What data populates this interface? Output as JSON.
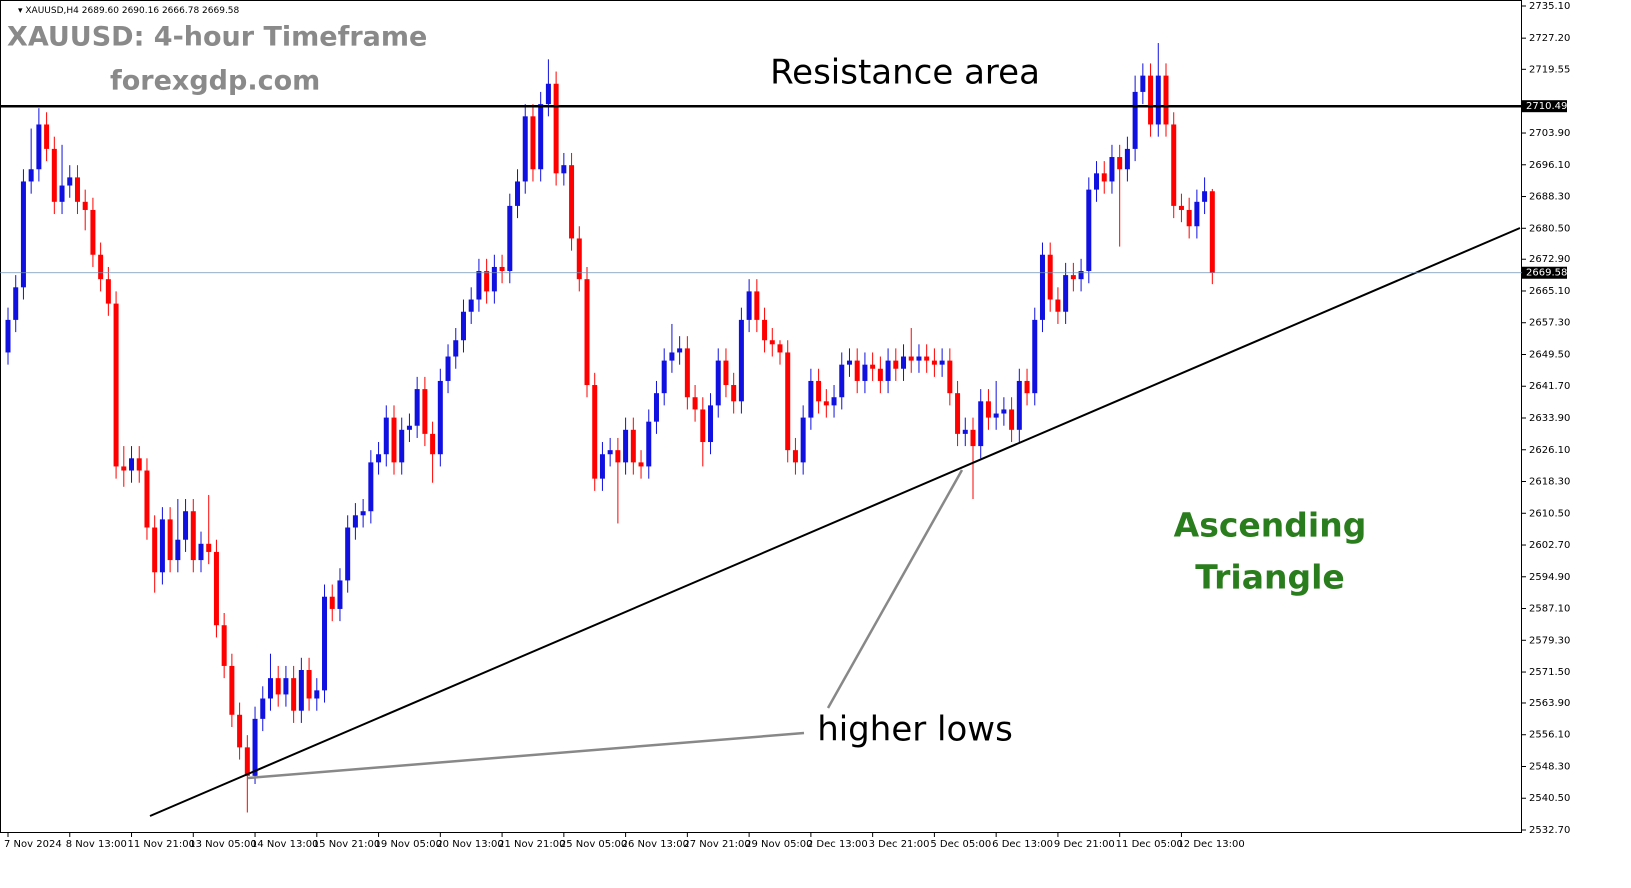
{
  "info_bar": {
    "symbol": "XAUUSD,H4",
    "values": [
      "2689.60",
      "2690.16",
      "2666.78",
      "2669.58"
    ]
  },
  "headline": "XAUUSD: 4-hour Timeframe",
  "website": "forexgdp.com",
  "annotations": {
    "resistance": "Resistance area",
    "pattern": [
      "Ascending",
      "Triangle"
    ],
    "lows": "higher lows"
  },
  "chart_data": {
    "type": "candlestick",
    "categories": [
      "7 Nov 2024",
      null,
      null,
      null,
      null,
      null,
      null,
      null,
      "8 Nov 13:00",
      null,
      null,
      null,
      null,
      null,
      null,
      null,
      "11 Nov 21:00",
      null,
      null,
      null,
      null,
      null,
      null,
      null,
      "13 Nov 05:00",
      null,
      null,
      null,
      null,
      null,
      null,
      null,
      "14 Nov 13:00",
      null,
      null,
      null,
      null,
      null,
      null,
      null,
      "15 Nov 21:00",
      null,
      null,
      null,
      null,
      null,
      null,
      null,
      "19 Nov 05:00",
      null,
      null,
      null,
      null,
      null,
      null,
      null,
      "20 Nov 13:00",
      null,
      null,
      null,
      null,
      null,
      null,
      null,
      "21 Nov 21:00",
      null,
      null,
      null,
      null,
      null,
      null,
      null,
      "25 Nov 05:00",
      null,
      null,
      null,
      null,
      null,
      null,
      null,
      "26 Nov 13:00",
      null,
      null,
      null,
      null,
      null,
      null,
      null,
      "27 Nov 21:00",
      null,
      null,
      null,
      null,
      null,
      null,
      null,
      "29 Nov 05:00",
      null,
      null,
      null,
      null,
      null,
      null,
      null,
      "2 Dec 13:00",
      null,
      null,
      null,
      null,
      null,
      null,
      null,
      "3 Dec 21:00",
      null,
      null,
      null,
      null,
      null,
      null,
      null,
      "5 Dec 05:00",
      null,
      null,
      null,
      null,
      null,
      null,
      null,
      "6 Dec 13:00",
      null,
      null,
      null,
      null,
      null,
      null,
      null,
      "9 Dec 21:00",
      null,
      null,
      null,
      null,
      null,
      null,
      null,
      "11 Dec 05:00",
      null,
      null,
      null,
      null,
      null,
      null,
      null,
      "12 Dec 13:00",
      null,
      null,
      null,
      null
    ],
    "open": [
      2650,
      2658,
      2666,
      2692,
      2695,
      2706,
      2700,
      2687,
      2691,
      2693,
      2687,
      2685,
      2674,
      2668,
      2662,
      2622,
      2621,
      2624,
      2621,
      2607,
      2596,
      2609,
      2599,
      2604,
      2611,
      2599,
      2603,
      2601,
      2583,
      2573,
      2561,
      2553,
      2546,
      2560,
      2565,
      2570,
      2566,
      2570,
      2562,
      2572,
      2565,
      2567,
      2590,
      2587,
      2594,
      2607,
      2610,
      2611,
      2623,
      2625,
      2634,
      2623,
      2631,
      2632,
      2641,
      2630,
      2625,
      2643,
      2649,
      2653,
      2660,
      2663,
      2670,
      2665,
      2671,
      2670,
      2686,
      2692,
      2708,
      2695,
      2711,
      2716,
      2694,
      2696,
      2678,
      2668,
      2642,
      2619,
      2625,
      2626,
      2623,
      2631,
      2623,
      2622,
      2633,
      2640,
      2648,
      2650,
      2651,
      2639,
      2636,
      2628,
      2637,
      2648,
      2642,
      2638,
      2658,
      2665,
      2658,
      2653,
      2652,
      2650,
      2626,
      2623,
      2634,
      2643,
      2638,
      2637,
      2639,
      2647,
      2648,
      2643,
      2647,
      2646,
      2643,
      2648,
      2646,
      2649,
      2648,
      2649,
      2648,
      2647,
      2648,
      2640,
      2630,
      2631,
      2627,
      2638,
      2634,
      2635,
      2636,
      2631,
      2643,
      2640,
      2658,
      2674,
      2663,
      2660,
      2669,
      2668,
      2670,
      2690,
      2694,
      2692,
      2698,
      2695,
      2700,
      2714,
      2718,
      2706,
      2718,
      2706,
      2686,
      2685,
      2681,
      2687,
      2689.6
    ],
    "high": [
      2661,
      2669,
      2695,
      2705,
      2710,
      2709,
      2703,
      2701,
      2696,
      2696,
      2690,
      2688,
      2677,
      2671,
      2665,
      2627,
      2627,
      2627,
      2624,
      2610,
      2612,
      2612,
      2614,
      2614,
      2614,
      2606,
      2615,
      2604,
      2586,
      2576,
      2564,
      2556,
      2563,
      2568,
      2576,
      2573,
      2573,
      2573,
      2575,
      2575,
      2570,
      2593,
      2593,
      2597,
      2610,
      2613,
      2614,
      2626,
      2628,
      2637,
      2637,
      2634,
      2635,
      2644,
      2644,
      2633,
      2646,
      2652,
      2656,
      2663,
      2666,
      2673,
      2673,
      2674,
      2674,
      2689,
      2695,
      2711,
      2711,
      2714,
      2722,
      2719,
      2699,
      2699,
      2681,
      2671,
      2645,
      2628,
      2629,
      2629,
      2634,
      2634,
      2626,
      2636,
      2643,
      2651,
      2657,
      2654,
      2654,
      2642,
      2639,
      2640,
      2651,
      2651,
      2645,
      2661,
      2668,
      2668,
      2661,
      2656,
      2653,
      2653,
      2629,
      2637,
      2646,
      2646,
      2641,
      2642,
      2650,
      2651,
      2651,
      2650,
      2650,
      2649,
      2651,
      2651,
      2652,
      2656,
      2652,
      2652,
      2651,
      2651,
      2651,
      2643,
      2634,
      2634,
      2641,
      2641,
      2643,
      2639,
      2639,
      2646,
      2646,
      2661,
      2677,
      2677,
      2666,
      2672,
      2672,
      2673,
      2693,
      2697,
      2697,
      2701,
      2701,
      2703,
      2718,
      2721,
      2721,
      2726,
      2721,
      2709,
      2689,
      2688,
      2690,
      2693,
      2690.16
    ],
    "low": [
      2647,
      2655,
      2663,
      2689,
      2692,
      2697,
      2684,
      2684,
      2688,
      2684,
      2680,
      2671,
      2665,
      2659,
      2619,
      2617,
      2618,
      2618,
      2604,
      2591,
      2593,
      2596,
      2596,
      2601,
      2596,
      2596,
      2598,
      2580,
      2570,
      2558,
      2550,
      2537,
      2544,
      2557,
      2562,
      2563,
      2563,
      2559,
      2559,
      2562,
      2562,
      2564,
      2584,
      2584,
      2591,
      2604,
      2607,
      2608,
      2620,
      2622,
      2620,
      2620,
      2628,
      2629,
      2627,
      2618,
      2622,
      2640,
      2646,
      2650,
      2657,
      2660,
      2662,
      2662,
      2667,
      2667,
      2683,
      2689,
      2692,
      2692,
      2708,
      2691,
      2691,
      2675,
      2665,
      2639,
      2616,
      2616,
      2622,
      2608,
      2620,
      2620,
      2619,
      2619,
      2630,
      2637,
      2645,
      2647,
      2636,
      2633,
      2622,
      2625,
      2634,
      2639,
      2635,
      2635,
      2655,
      2655,
      2650,
      2649,
      2647,
      2623,
      2620,
      2620,
      2631,
      2635,
      2634,
      2634,
      2636,
      2644,
      2640,
      2640,
      2643,
      2640,
      2640,
      2643,
      2643,
      2645,
      2645,
      2645,
      2644,
      2644,
      2637,
      2627,
      2627,
      2614,
      2624,
      2631,
      2631,
      2632,
      2628,
      2628,
      2637,
      2637,
      2655,
      2660,
      2657,
      2657,
      2665,
      2665,
      2667,
      2687,
      2689,
      2689,
      2676,
      2692,
      2697,
      2711,
      2703,
      2703,
      2703,
      2683,
      2682,
      2678,
      2678,
      2684,
      2666.78
    ],
    "close": [
      2658,
      2666,
      2692,
      2695,
      2706,
      2700,
      2687,
      2691,
      2693,
      2687,
      2685,
      2674,
      2668,
      2662,
      2622,
      2621,
      2624,
      2621,
      2607,
      2596,
      2609,
      2599,
      2604,
      2611,
      2599,
      2603,
      2601,
      2583,
      2573,
      2561,
      2553,
      2546,
      2560,
      2565,
      2570,
      2566,
      2570,
      2562,
      2572,
      2565,
      2567,
      2590,
      2587,
      2594,
      2607,
      2610,
      2611,
      2623,
      2625,
      2634,
      2623,
      2631,
      2632,
      2641,
      2630,
      2625,
      2643,
      2649,
      2653,
      2660,
      2663,
      2670,
      2665,
      2671,
      2670,
      2686,
      2692,
      2708,
      2695,
      2711,
      2716,
      2694,
      2696,
      2678,
      2668,
      2642,
      2619,
      2625,
      2626,
      2623,
      2631,
      2623,
      2622,
      2633,
      2640,
      2648,
      2650,
      2651,
      2639,
      2636,
      2628,
      2637,
      2648,
      2642,
      2638,
      2658,
      2665,
      2658,
      2653,
      2652,
      2650,
      2626,
      2623,
      2634,
      2643,
      2638,
      2637,
      2639,
      2647,
      2648,
      2643,
      2647,
      2646,
      2643,
      2648,
      2646,
      2649,
      2648,
      2649,
      2648,
      2647,
      2648,
      2640,
      2630,
      2631,
      2627,
      2638,
      2634,
      2635,
      2636,
      2631,
      2643,
      2640,
      2658,
      2674,
      2663,
      2660,
      2669,
      2668,
      2670,
      2690,
      2694,
      2692,
      2698,
      2695,
      2700,
      2714,
      2718,
      2706,
      2718,
      2706,
      2686,
      2685,
      2681,
      2687,
      2689.6,
      2669.58
    ],
    "up_color": "#1010e0",
    "down_color": "#ff0000",
    "ylim": [
      2532.7,
      2735.1
    ],
    "yticks": [
      {
        "value": 2735.1,
        "label": "2735.10"
      },
      {
        "value": 2727.2,
        "label": "2727.20"
      },
      {
        "value": 2719.55,
        "label": "2719.55"
      },
      {
        "value": 2703.9,
        "label": "2703.90"
      },
      {
        "value": 2696.1,
        "label": "2696.10"
      },
      {
        "value": 2688.3,
        "label": "2688.30"
      },
      {
        "value": 2680.5,
        "label": "2680.50"
      },
      {
        "value": 2672.9,
        "label": "2672.90"
      },
      {
        "value": 2665.1,
        "label": "2665.10"
      },
      {
        "value": 2657.3,
        "label": "2657.30"
      },
      {
        "value": 2649.5,
        "label": "2649.50"
      },
      {
        "value": 2641.7,
        "label": "2641.70"
      },
      {
        "value": 2633.9,
        "label": "2633.90"
      },
      {
        "value": 2626.1,
        "label": "2626.10"
      },
      {
        "value": 2618.3,
        "label": "2618.30"
      },
      {
        "value": 2610.5,
        "label": "2610.50"
      },
      {
        "value": 2602.7,
        "label": "2602.70"
      },
      {
        "value": 2594.9,
        "label": "2594.90"
      },
      {
        "value": 2587.1,
        "label": "2587.10"
      },
      {
        "value": 2579.3,
        "label": "2579.30"
      },
      {
        "value": 2571.5,
        "label": "2571.50"
      },
      {
        "value": 2563.9,
        "label": "2563.90"
      },
      {
        "value": 2556.1,
        "label": "2556.10"
      },
      {
        "value": 2548.3,
        "label": "2548.30"
      },
      {
        "value": 2540.5,
        "label": "2540.50"
      },
      {
        "value": 2532.7,
        "label": "2532.70"
      }
    ],
    "levels": [
      {
        "value": 2710.49,
        "label": "2710.49",
        "color": "#000000"
      },
      {
        "value": 2669.58,
        "label": "2669.58",
        "color": "#7090b8"
      }
    ]
  }
}
